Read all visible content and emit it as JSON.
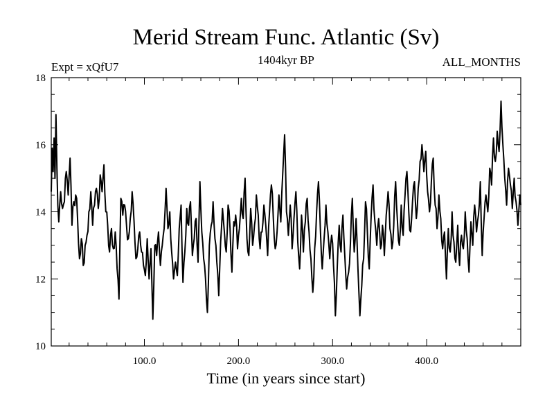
{
  "chart_data": {
    "type": "line",
    "title": "Merid Stream Func. Atlantic (Sv)",
    "subtitle": "1404kyr BP",
    "left_label": "Expt = xQfU7",
    "right_label": "ALL_MONTHS",
    "xlabel": "Time (in years since start)",
    "ylabel": "",
    "xlim": [
      1,
      500
    ],
    "ylim": [
      10,
      18
    ],
    "x_ticks": [
      100,
      200,
      300,
      400
    ],
    "x_tick_labels": [
      "100.0",
      "200.0",
      "300.0",
      "400.0"
    ],
    "y_ticks": [
      10,
      12,
      14,
      16,
      18
    ],
    "y_tick_labels": [
      "10",
      "12",
      "14",
      "16",
      "18"
    ],
    "grid": false,
    "line_color": "#000000",
    "anchors": [
      [
        1,
        14.6
      ],
      [
        2,
        15.9
      ],
      [
        3,
        15.2
      ],
      [
        4,
        16.2
      ],
      [
        5,
        15.0
      ],
      [
        6,
        16.9
      ],
      [
        7,
        15.3
      ],
      [
        8,
        14.2
      ],
      [
        9,
        13.7
      ],
      [
        11,
        14.6
      ],
      [
        13,
        14.1
      ],
      [
        15,
        14.3
      ],
      [
        17,
        15.2
      ],
      [
        19,
        14.5
      ],
      [
        21,
        15.6
      ],
      [
        23,
        13.6
      ],
      [
        25,
        14.3
      ],
      [
        27,
        14.5
      ],
      [
        29,
        13.8
      ],
      [
        31,
        12.6
      ],
      [
        33,
        13.2
      ],
      [
        35,
        12.4
      ],
      [
        37,
        13.0
      ],
      [
        39,
        13.3
      ],
      [
        41,
        14.0
      ],
      [
        43,
        14.6
      ],
      [
        45,
        13.6
      ],
      [
        47,
        14.2
      ],
      [
        49,
        14.7
      ],
      [
        51,
        14.1
      ],
      [
        53,
        15.1
      ],
      [
        55,
        14.6
      ],
      [
        57,
        15.4
      ],
      [
        59,
        14.0
      ],
      [
        61,
        13.6
      ],
      [
        63,
        12.8
      ],
      [
        65,
        13.5
      ],
      [
        67,
        12.9
      ],
      [
        69,
        13.4
      ],
      [
        71,
        12.3
      ],
      [
        73,
        11.4
      ],
      [
        75,
        14.4
      ],
      [
        77,
        13.9
      ],
      [
        79,
        14.2
      ],
      [
        81,
        13.6
      ],
      [
        83,
        13.2
      ],
      [
        85,
        13.8
      ],
      [
        87,
        14.6
      ],
      [
        89,
        13.7
      ],
      [
        91,
        12.6
      ],
      [
        93,
        12.9
      ],
      [
        95,
        13.4
      ],
      [
        97,
        12.8
      ],
      [
        99,
        12.4
      ],
      [
        101,
        12.1
      ],
      [
        103,
        13.2
      ],
      [
        105,
        12.0
      ],
      [
        107,
        12.9
      ],
      [
        109,
        10.8
      ],
      [
        111,
        13.0
      ],
      [
        113,
        12.7
      ],
      [
        115,
        13.4
      ],
      [
        117,
        12.4
      ],
      [
        119,
        13.0
      ],
      [
        121,
        13.5
      ],
      [
        123,
        14.7
      ],
      [
        125,
        13.5
      ],
      [
        127,
        14.0
      ],
      [
        129,
        12.8
      ],
      [
        131,
        12.0
      ],
      [
        133,
        12.5
      ],
      [
        135,
        12.1
      ],
      [
        137,
        13.5
      ],
      [
        139,
        14.2
      ],
      [
        141,
        11.9
      ],
      [
        143,
        12.8
      ],
      [
        145,
        14.1
      ],
      [
        147,
        13.6
      ],
      [
        149,
        14.3
      ],
      [
        151,
        12.7
      ],
      [
        153,
        13.2
      ],
      [
        155,
        13.8
      ],
      [
        157,
        12.5
      ],
      [
        159,
        14.9
      ],
      [
        161,
        13.4
      ],
      [
        163,
        12.6
      ],
      [
        165,
        12.0
      ],
      [
        167,
        11.0
      ],
      [
        169,
        13.0
      ],
      [
        171,
        13.6
      ],
      [
        173,
        14.3
      ],
      [
        175,
        13.2
      ],
      [
        177,
        12.5
      ],
      [
        179,
        11.5
      ],
      [
        181,
        13.1
      ],
      [
        183,
        14.1
      ],
      [
        185,
        13.4
      ],
      [
        187,
        12.8
      ],
      [
        189,
        14.2
      ],
      [
        191,
        13.5
      ],
      [
        193,
        12.2
      ],
      [
        195,
        13.7
      ],
      [
        197,
        13.9
      ],
      [
        199,
        12.9
      ],
      [
        201,
        13.5
      ],
      [
        203,
        14.4
      ],
      [
        205,
        13.8
      ],
      [
        207,
        15.0
      ],
      [
        209,
        13.2
      ],
      [
        211,
        12.7
      ],
      [
        213,
        14.1
      ],
      [
        215,
        13.0
      ],
      [
        217,
        13.6
      ],
      [
        219,
        14.5
      ],
      [
        221,
        13.9
      ],
      [
        223,
        12.9
      ],
      [
        225,
        13.4
      ],
      [
        227,
        14.2
      ],
      [
        229,
        13.6
      ],
      [
        231,
        12.7
      ],
      [
        233,
        14.0
      ],
      [
        235,
        14.8
      ],
      [
        237,
        13.8
      ],
      [
        239,
        12.9
      ],
      [
        241,
        13.4
      ],
      [
        243,
        14.5
      ],
      [
        245,
        13.7
      ],
      [
        247,
        15.1
      ],
      [
        249,
        16.3
      ],
      [
        251,
        14.0
      ],
      [
        253,
        13.3
      ],
      [
        255,
        14.2
      ],
      [
        257,
        12.9
      ],
      [
        259,
        13.8
      ],
      [
        261,
        14.6
      ],
      [
        263,
        13.1
      ],
      [
        265,
        12.3
      ],
      [
        267,
        13.9
      ],
      [
        269,
        12.8
      ],
      [
        271,
        13.7
      ],
      [
        273,
        14.4
      ],
      [
        275,
        13.4
      ],
      [
        277,
        12.6
      ],
      [
        279,
        11.6
      ],
      [
        281,
        12.9
      ],
      [
        283,
        14.0
      ],
      [
        285,
        14.9
      ],
      [
        287,
        13.5
      ],
      [
        289,
        12.3
      ],
      [
        291,
        13.2
      ],
      [
        293,
        14.2
      ],
      [
        295,
        13.4
      ],
      [
        297,
        12.6
      ],
      [
        299,
        13.3
      ],
      [
        301,
        12.4
      ],
      [
        303,
        10.9
      ],
      [
        305,
        12.4
      ],
      [
        307,
        13.6
      ],
      [
        309,
        12.8
      ],
      [
        311,
        13.9
      ],
      [
        313,
        12.7
      ],
      [
        315,
        11.7
      ],
      [
        317,
        12.2
      ],
      [
        319,
        13.1
      ],
      [
        321,
        14.4
      ],
      [
        323,
        12.8
      ],
      [
        325,
        13.8
      ],
      [
        327,
        12.3
      ],
      [
        329,
        10.9
      ],
      [
        331,
        11.8
      ],
      [
        333,
        12.6
      ],
      [
        335,
        14.3
      ],
      [
        337,
        13.4
      ],
      [
        339,
        12.3
      ],
      [
        341,
        13.9
      ],
      [
        343,
        14.8
      ],
      [
        345,
        13.7
      ],
      [
        347,
        13.0
      ],
      [
        349,
        13.8
      ],
      [
        351,
        12.9
      ],
      [
        353,
        13.6
      ],
      [
        355,
        12.7
      ],
      [
        357,
        13.9
      ],
      [
        359,
        14.6
      ],
      [
        361,
        13.5
      ],
      [
        363,
        12.9
      ],
      [
        365,
        13.6
      ],
      [
        367,
        14.9
      ],
      [
        369,
        13.7
      ],
      [
        371,
        13.0
      ],
      [
        373,
        14.2
      ],
      [
        375,
        13.3
      ],
      [
        377,
        14.5
      ],
      [
        379,
        15.2
      ],
      [
        381,
        14.0
      ],
      [
        383,
        13.4
      ],
      [
        385,
        14.3
      ],
      [
        387,
        14.9
      ],
      [
        389,
        13.8
      ],
      [
        391,
        14.7
      ],
      [
        393,
        15.5
      ],
      [
        395,
        16.0
      ],
      [
        397,
        15.2
      ],
      [
        399,
        15.8
      ],
      [
        401,
        14.6
      ],
      [
        403,
        14.0
      ],
      [
        405,
        14.9
      ],
      [
        407,
        15.6
      ],
      [
        409,
        14.2
      ],
      [
        411,
        13.5
      ],
      [
        413,
        14.5
      ],
      [
        415,
        13.8
      ],
      [
        417,
        12.9
      ],
      [
        419,
        13.4
      ],
      [
        421,
        12.0
      ],
      [
        423,
        13.5
      ],
      [
        425,
        12.8
      ],
      [
        427,
        14.0
      ],
      [
        429,
        13.1
      ],
      [
        431,
        12.5
      ],
      [
        433,
        13.6
      ],
      [
        435,
        12.4
      ],
      [
        437,
        13.3
      ],
      [
        439,
        12.9
      ],
      [
        441,
        14.0
      ],
      [
        443,
        13.2
      ],
      [
        445,
        12.2
      ],
      [
        447,
        13.7
      ],
      [
        449,
        13.0
      ],
      [
        451,
        14.2
      ],
      [
        453,
        13.4
      ],
      [
        455,
        13.9
      ],
      [
        457,
        14.9
      ],
      [
        459,
        12.7
      ],
      [
        461,
        13.8
      ],
      [
        463,
        14.5
      ],
      [
        465,
        14.0
      ],
      [
        467,
        15.3
      ],
      [
        469,
        14.8
      ],
      [
        471,
        16.2
      ],
      [
        473,
        15.5
      ],
      [
        475,
        16.4
      ],
      [
        477,
        15.8
      ],
      [
        479,
        17.3
      ],
      [
        481,
        16.0
      ],
      [
        483,
        15.0
      ],
      [
        485,
        14.2
      ],
      [
        487,
        15.3
      ],
      [
        489,
        14.8
      ],
      [
        491,
        14.1
      ],
      [
        493,
        15.0
      ],
      [
        495,
        14.3
      ],
      [
        497,
        13.6
      ],
      [
        499,
        14.5
      ],
      [
        500,
        14.2
      ]
    ]
  }
}
